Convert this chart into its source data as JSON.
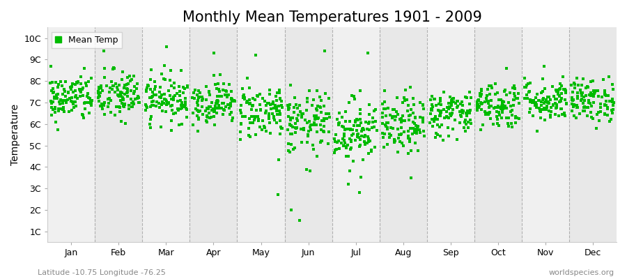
{
  "title": "Monthly Mean Temperatures 1901 - 2009",
  "ylabel": "Temperature",
  "xlabel": "",
  "subtitle_left": "Latitude -10.75 Longitude -76.25",
  "subtitle_right": "worldspecies.org",
  "months": [
    "Jan",
    "Feb",
    "Mar",
    "Apr",
    "May",
    "Jun",
    "Jul",
    "Aug",
    "Sep",
    "Oct",
    "Nov",
    "Dec"
  ],
  "ytick_labels": [
    "1C",
    "2C",
    "3C",
    "4C",
    "5C",
    "6C",
    "7C",
    "8C",
    "9C",
    "10C"
  ],
  "ytick_values": [
    1,
    2,
    3,
    4,
    5,
    6,
    7,
    8,
    9,
    10
  ],
  "ylim": [
    0.5,
    10.5
  ],
  "dot_color": "#00bb00",
  "dot_size": 10,
  "background_color": "#ffffff",
  "plot_bg_color": "#f5f5f5",
  "title_fontsize": 15,
  "axis_label_fontsize": 10,
  "tick_fontsize": 9,
  "legend_marker_color": "#00bb00",
  "legend_label": "Mean Temp",
  "dashed_line_color": "#888888",
  "n_years": 109,
  "seed": 42,
  "monthly_means": [
    7.2,
    7.3,
    7.2,
    7.0,
    6.6,
    6.0,
    5.7,
    5.9,
    6.5,
    6.9,
    7.1,
    7.1
  ],
  "monthly_stds": [
    0.55,
    0.6,
    0.55,
    0.5,
    0.65,
    0.75,
    0.75,
    0.65,
    0.55,
    0.55,
    0.5,
    0.5
  ],
  "outlier_low_months": [
    4,
    5,
    5,
    6,
    6,
    7
  ],
  "outlier_low_values": [
    2.7,
    2.0,
    1.5,
    2.8,
    3.2,
    3.5
  ],
  "outlier_high_months": [
    0,
    1,
    2,
    3,
    4,
    5,
    6,
    7,
    9,
    10,
    11
  ],
  "outlier_high_values": [
    8.2,
    9.4,
    9.6,
    9.3,
    9.2,
    9.4,
    9.3,
    7.7,
    8.6,
    8.7,
    8.2
  ]
}
